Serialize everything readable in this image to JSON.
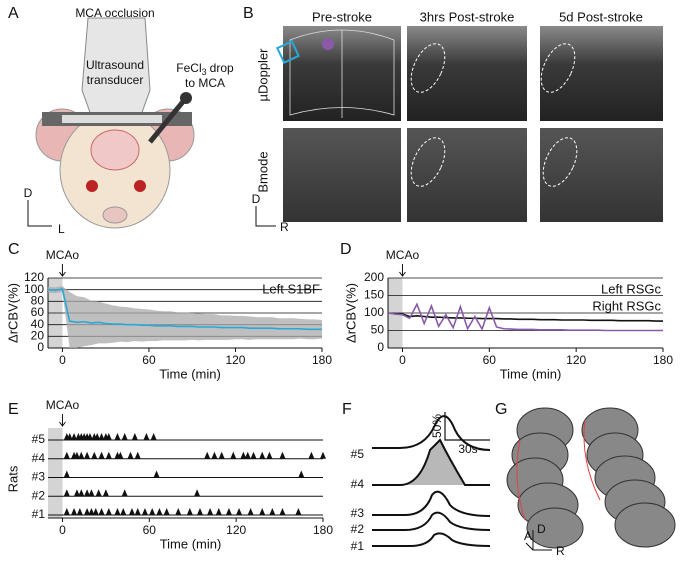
{
  "panels": {
    "A": {
      "letter": "A",
      "title": "MCA occlusion",
      "transducer": [
        "Ultrasound",
        "transducer"
      ],
      "drop": {
        "formula": "FeCl",
        "subscript": "3",
        "rest": "drop",
        "line2": "to MCA"
      },
      "axes": [
        "D",
        "L"
      ]
    },
    "B": {
      "letter": "B",
      "columns": [
        "Pre-stroke",
        "3hrs Post-stroke",
        "5d Post-stroke"
      ],
      "rows": [
        "µDoppler",
        "Bmode"
      ],
      "axes": [
        "D",
        "R"
      ]
    },
    "F": {
      "letter": "F",
      "labels": [
        "#5",
        "#4",
        "#3",
        "#2",
        "#1"
      ],
      "scale": [
        "50%",
        "30s"
      ]
    },
    "G": {
      "letter": "G",
      "axes": [
        "A",
        "D",
        "R"
      ]
    }
  },
  "chart_data": [
    {
      "type": "line",
      "label": "C",
      "annotation": "MCAo",
      "xlabel": "Time (min)",
      "ylabel": "ΔrCBV(%)",
      "x": [
        -10,
        -5,
        0,
        5,
        10,
        15,
        20,
        25,
        30,
        35,
        40,
        45,
        50,
        55,
        60,
        65,
        70,
        75,
        80,
        85,
        90,
        95,
        100,
        105,
        110,
        115,
        120,
        125,
        130,
        135,
        140,
        145,
        150,
        155,
        160,
        165,
        170,
        175,
        180
      ],
      "series": [
        {
          "name": "Left S1BF",
          "color": "#29a8d8",
          "values": [
            100,
            99,
            101,
            46,
            44,
            45,
            43,
            44,
            42,
            41,
            41,
            40,
            40,
            39,
            39,
            38,
            38,
            38,
            37,
            37,
            37,
            36,
            36,
            36,
            35,
            35,
            35,
            35,
            34,
            34,
            34,
            34,
            33,
            33,
            33,
            33,
            32,
            32,
            32
          ],
          "error": [
            5,
            5,
            5,
            50,
            45,
            42,
            38,
            36,
            34,
            32,
            30,
            30,
            28,
            28,
            27,
            26,
            25,
            25,
            24,
            24,
            23,
            23,
            22,
            22,
            21,
            21,
            20,
            20,
            20,
            19,
            19,
            19,
            18,
            18,
            18,
            17,
            17,
            17,
            16
          ]
        }
      ],
      "xlim": [
        -10,
        180
      ],
      "xticks": [
        0,
        60,
        120,
        180
      ],
      "ylim": [
        0,
        120
      ],
      "yticks": [
        0,
        20,
        40,
        60,
        80,
        100,
        120
      ],
      "grid": true
    },
    {
      "type": "line",
      "label": "D",
      "annotation": "MCAo",
      "xlabel": "Time (min)",
      "ylabel": "ΔrCBV(%)",
      "x": [
        -10,
        -5,
        0,
        5,
        10,
        15,
        20,
        25,
        30,
        35,
        40,
        45,
        50,
        55,
        60,
        65,
        70,
        75,
        80,
        85,
        90,
        95,
        100,
        105,
        110,
        115,
        120,
        125,
        130,
        135,
        140,
        145,
        150,
        155,
        160,
        165,
        170,
        175,
        180
      ],
      "series": [
        {
          "name": "Left RSGc",
          "color": "#8a5aa8",
          "values": [
            100,
            97,
            95,
            85,
            125,
            70,
            120,
            62,
            95,
            58,
            118,
            55,
            90,
            54,
            115,
            60,
            55,
            54,
            53,
            53,
            53,
            52,
            52,
            52,
            52,
            51,
            51,
            51,
            51,
            51,
            50,
            50,
            50,
            50,
            50,
            50,
            50,
            50,
            50
          ]
        },
        {
          "name": "Right RSGc",
          "color": "#111111",
          "values": [
            100,
            98,
            97,
            90,
            92,
            90,
            88,
            88,
            87,
            86,
            86,
            85,
            85,
            84,
            84,
            84,
            83,
            83,
            82,
            82,
            82,
            81,
            81,
            81,
            80,
            80,
            80,
            80,
            79,
            79,
            79,
            79,
            78,
            78,
            78,
            78,
            78,
            77,
            77
          ]
        }
      ],
      "xlim": [
        -10,
        180
      ],
      "xticks": [
        0,
        60,
        120,
        180
      ],
      "ylim": [
        0,
        200
      ],
      "yticks": [
        0,
        50,
        100,
        150,
        200
      ],
      "grid": true
    },
    {
      "type": "raster",
      "label": "E",
      "annotation": "MCAo",
      "xlabel": "Time (min)",
      "ylabel": "Rats",
      "categories": [
        "#5",
        "#4",
        "#3",
        "#2",
        "#1"
      ],
      "events": [
        [
          3,
          5,
          8,
          11,
          13,
          15,
          17,
          19,
          22,
          24,
          27,
          30,
          32,
          38,
          43,
          50,
          58,
          63
        ],
        [
          3,
          8,
          10,
          13,
          17,
          22,
          27,
          32,
          38,
          40,
          47,
          52,
          100,
          105,
          110,
          118,
          125,
          128,
          132,
          138,
          143,
          152,
          172,
          180
        ],
        [
          3,
          65,
          165
        ],
        [
          3,
          10,
          13,
          17,
          20,
          25,
          30,
          43,
          93
        ],
        [
          3,
          8,
          12,
          17,
          20,
          23,
          27,
          32,
          38,
          42,
          48,
          52,
          57,
          62,
          67,
          72,
          80,
          88,
          95,
          102,
          108,
          115,
          122,
          130,
          138,
          145,
          152,
          163
        ]
      ],
      "color": "#111111",
      "xlim": [
        -10,
        180
      ],
      "xticks": [
        0,
        60,
        120,
        180
      ]
    }
  ]
}
